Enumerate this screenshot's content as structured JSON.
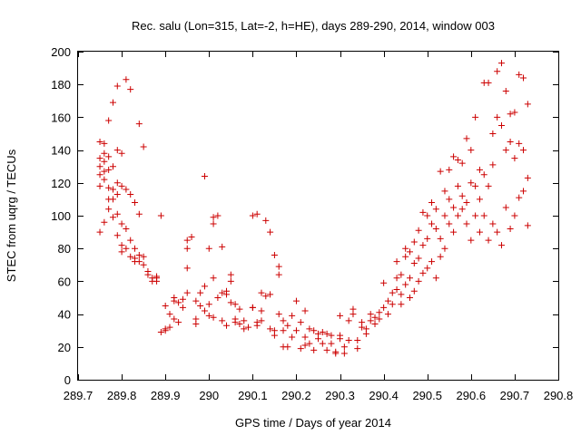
{
  "chart_data": {
    "type": "scatter",
    "title": "Rec. salu (Lon=315, Lat=-2, h=HE), days 289-290, 2014, window 003",
    "xlabel": "GPS time / Days of year 2014",
    "ylabel": "STEC from uqrg / TECUs",
    "xlim": [
      289.7,
      290.8
    ],
    "ylim": [
      0,
      200
    ],
    "xticks": [
      289.7,
      289.8,
      289.9,
      290.0,
      290.1,
      290.2,
      290.3,
      290.4,
      290.5,
      290.6,
      290.7,
      290.8
    ],
    "xtick_labels": [
      "289.7",
      "289.8",
      "289.9",
      "290",
      "290.1",
      "290.2",
      "290.3",
      "290.4",
      "290.5",
      "290.6",
      "290.7",
      "290.8"
    ],
    "yticks": [
      0,
      20,
      40,
      60,
      80,
      100,
      120,
      140,
      160,
      180,
      200
    ],
    "ytick_labels": [
      "0",
      "20",
      "40",
      "60",
      "80",
      "100",
      "120",
      "140",
      "160",
      "180",
      "200"
    ],
    "grid": false,
    "legend": "none",
    "marker": "plus",
    "color": "#cc0000",
    "series": [
      {
        "name": "STEC",
        "points": [
          [
            289.75,
            145
          ],
          [
            289.75,
            135
          ],
          [
            289.75,
            130
          ],
          [
            289.75,
            125
          ],
          [
            289.75,
            118
          ],
          [
            289.75,
            90
          ],
          [
            289.76,
            144
          ],
          [
            289.76,
            138
          ],
          [
            289.76,
            133
          ],
          [
            289.76,
            127
          ],
          [
            289.76,
            122
          ],
          [
            289.76,
            96
          ],
          [
            289.77,
            136
          ],
          [
            289.77,
            128
          ],
          [
            289.77,
            117
          ],
          [
            289.77,
            110
          ],
          [
            289.77,
            104
          ],
          [
            289.77,
            158
          ],
          [
            289.78,
            130
          ],
          [
            289.78,
            116
          ],
          [
            289.78,
            110
          ],
          [
            289.78,
            99
          ],
          [
            289.78,
            169
          ],
          [
            289.79,
            140
          ],
          [
            289.79,
            120
          ],
          [
            289.79,
            113
          ],
          [
            289.79,
            101
          ],
          [
            289.79,
            88
          ],
          [
            289.79,
            179
          ],
          [
            289.8,
            138
          ],
          [
            289.8,
            118
          ],
          [
            289.8,
            95
          ],
          [
            289.8,
            82
          ],
          [
            289.8,
            78
          ],
          [
            289.81,
            183
          ],
          [
            289.81,
            116
          ],
          [
            289.81,
            92
          ],
          [
            289.81,
            80
          ],
          [
            289.82,
            177
          ],
          [
            289.82,
            113
          ],
          [
            289.82,
            85
          ],
          [
            289.82,
            75
          ],
          [
            289.83,
            108
          ],
          [
            289.83,
            80
          ],
          [
            289.83,
            74
          ],
          [
            289.83,
            72
          ],
          [
            289.84,
            156
          ],
          [
            289.84,
            101
          ],
          [
            289.84,
            76
          ],
          [
            289.84,
            72
          ],
          [
            289.85,
            75
          ],
          [
            289.85,
            70
          ],
          [
            289.85,
            142
          ],
          [
            289.86,
            66
          ],
          [
            289.86,
            64
          ],
          [
            289.87,
            60
          ],
          [
            289.87,
            62
          ],
          [
            289.88,
            62
          ],
          [
            289.88,
            63
          ],
          [
            289.88,
            60
          ],
          [
            289.89,
            29
          ],
          [
            289.89,
            100
          ],
          [
            289.9,
            30
          ],
          [
            289.9,
            31
          ],
          [
            289.9,
            45
          ],
          [
            289.91,
            32
          ],
          [
            289.91,
            40
          ],
          [
            289.92,
            37
          ],
          [
            289.92,
            48
          ],
          [
            289.92,
            50
          ],
          [
            289.93,
            35
          ],
          [
            289.93,
            47
          ],
          [
            289.94,
            44
          ],
          [
            289.94,
            49
          ],
          [
            289.95,
            53
          ],
          [
            289.95,
            85
          ],
          [
            289.95,
            80
          ],
          [
            289.95,
            68
          ],
          [
            289.96,
            87
          ],
          [
            289.97,
            48
          ],
          [
            289.97,
            34
          ],
          [
            289.97,
            37
          ],
          [
            289.98,
            53
          ],
          [
            289.98,
            45
          ],
          [
            289.99,
            57
          ],
          [
            289.99,
            124
          ],
          [
            289.99,
            42
          ],
          [
            290.0,
            80
          ],
          [
            290.0,
            46
          ],
          [
            290.0,
            39
          ],
          [
            290.01,
            62
          ],
          [
            290.01,
            95
          ],
          [
            290.01,
            99
          ],
          [
            290.01,
            38
          ],
          [
            290.02,
            100
          ],
          [
            290.02,
            50
          ],
          [
            290.03,
            81
          ],
          [
            290.03,
            53
          ],
          [
            290.03,
            36
          ],
          [
            290.04,
            52
          ],
          [
            290.04,
            54
          ],
          [
            290.04,
            33
          ],
          [
            290.05,
            64
          ],
          [
            290.05,
            60
          ],
          [
            290.05,
            47
          ],
          [
            290.06,
            46
          ],
          [
            290.06,
            35
          ],
          [
            290.06,
            37
          ],
          [
            290.07,
            34
          ],
          [
            290.07,
            43
          ],
          [
            290.08,
            31
          ],
          [
            290.08,
            36
          ],
          [
            290.09,
            32
          ],
          [
            290.1,
            100
          ],
          [
            290.1,
            44
          ],
          [
            290.1,
            44
          ],
          [
            290.11,
            33
          ],
          [
            290.11,
            101
          ],
          [
            290.11,
            35
          ],
          [
            290.12,
            53
          ],
          [
            290.12,
            42
          ],
          [
            290.12,
            36
          ],
          [
            290.13,
            97
          ],
          [
            290.13,
            51
          ],
          [
            290.14,
            90
          ],
          [
            290.14,
            52
          ],
          [
            290.14,
            31
          ],
          [
            290.15,
            76
          ],
          [
            290.15,
            30
          ],
          [
            290.15,
            27
          ],
          [
            290.16,
            69
          ],
          [
            290.16,
            64
          ],
          [
            290.16,
            40
          ],
          [
            290.17,
            20
          ],
          [
            290.17,
            30
          ],
          [
            290.17,
            36
          ],
          [
            290.18,
            20
          ],
          [
            290.18,
            33
          ],
          [
            290.19,
            39
          ],
          [
            290.19,
            26
          ],
          [
            290.2,
            48
          ],
          [
            290.2,
            30
          ],
          [
            290.21,
            19
          ],
          [
            290.21,
            35
          ],
          [
            290.22,
            42
          ],
          [
            290.22,
            26
          ],
          [
            290.22,
            21
          ],
          [
            290.23,
            22
          ],
          [
            290.23,
            31
          ],
          [
            290.24,
            30
          ],
          [
            290.24,
            18
          ],
          [
            290.25,
            25
          ],
          [
            290.25,
            28
          ],
          [
            290.26,
            22
          ],
          [
            290.26,
            29
          ],
          [
            290.27,
            28
          ],
          [
            290.27,
            18
          ],
          [
            290.28,
            22
          ],
          [
            290.28,
            27
          ],
          [
            290.29,
            16
          ],
          [
            290.29,
            17
          ],
          [
            290.3,
            27
          ],
          [
            290.3,
            39
          ],
          [
            290.3,
            25
          ],
          [
            290.31,
            16
          ],
          [
            290.31,
            20
          ],
          [
            290.32,
            36
          ],
          [
            290.32,
            24
          ],
          [
            290.33,
            40
          ],
          [
            290.33,
            43
          ],
          [
            290.34,
            24
          ],
          [
            290.34,
            19
          ],
          [
            290.35,
            32
          ],
          [
            290.35,
            35
          ],
          [
            290.36,
            28
          ],
          [
            290.36,
            31
          ],
          [
            290.37,
            36
          ],
          [
            290.37,
            40
          ],
          [
            290.38,
            38
          ],
          [
            290.38,
            34
          ],
          [
            290.39,
            41
          ],
          [
            290.39,
            37
          ],
          [
            290.4,
            59
          ],
          [
            290.4,
            44
          ],
          [
            290.41,
            48
          ],
          [
            290.41,
            40
          ],
          [
            290.42,
            53
          ],
          [
            290.42,
            46
          ],
          [
            290.43,
            72
          ],
          [
            290.43,
            62
          ],
          [
            290.43,
            55
          ],
          [
            290.44,
            64
          ],
          [
            290.44,
            52
          ],
          [
            290.44,
            46
          ],
          [
            290.45,
            75
          ],
          [
            290.45,
            80
          ],
          [
            290.45,
            58
          ],
          [
            290.46,
            78
          ],
          [
            290.46,
            62
          ],
          [
            290.46,
            50
          ],
          [
            290.47,
            84
          ],
          [
            290.47,
            71
          ],
          [
            290.47,
            54
          ],
          [
            290.48,
            91
          ],
          [
            290.48,
            74
          ],
          [
            290.48,
            60
          ],
          [
            290.49,
            102
          ],
          [
            290.49,
            82
          ],
          [
            290.49,
            65
          ],
          [
            290.5,
            100
          ],
          [
            290.5,
            86
          ],
          [
            290.5,
            68
          ],
          [
            290.51,
            108
          ],
          [
            290.51,
            95
          ],
          [
            290.51,
            72
          ],
          [
            290.52,
            104
          ],
          [
            290.52,
            92
          ],
          [
            290.52,
            62
          ],
          [
            290.53,
            127
          ],
          [
            290.53,
            86
          ],
          [
            290.53,
            75
          ],
          [
            290.54,
            115
          ],
          [
            290.54,
            100
          ],
          [
            290.54,
            80
          ],
          [
            290.55,
            128
          ],
          [
            290.55,
            110
          ],
          [
            290.55,
            95
          ],
          [
            290.56,
            136
          ],
          [
            290.56,
            105
          ],
          [
            290.56,
            90
          ],
          [
            290.57,
            134
          ],
          [
            290.57,
            118
          ],
          [
            290.57,
            100
          ],
          [
            290.58,
            132
          ],
          [
            290.58,
            112
          ],
          [
            290.58,
            104
          ],
          [
            290.59,
            147
          ],
          [
            290.59,
            108
          ],
          [
            290.59,
            95
          ],
          [
            290.6,
            140
          ],
          [
            290.6,
            120
          ],
          [
            290.6,
            85
          ],
          [
            290.61,
            160
          ],
          [
            290.61,
            118
          ],
          [
            290.61,
            100
          ],
          [
            290.62,
            128
          ],
          [
            290.62,
            110
          ],
          [
            290.62,
            90
          ],
          [
            290.63,
            181
          ],
          [
            290.63,
            125
          ],
          [
            290.63,
            100
          ],
          [
            290.64,
            181
          ],
          [
            290.64,
            118
          ],
          [
            290.64,
            85
          ],
          [
            290.65,
            150
          ],
          [
            290.65,
            131
          ],
          [
            290.65,
            95
          ],
          [
            290.66,
            188
          ],
          [
            290.66,
            160
          ],
          [
            290.66,
            90
          ],
          [
            290.67,
            193
          ],
          [
            290.67,
            155
          ],
          [
            290.67,
            82
          ],
          [
            290.68,
            176
          ],
          [
            290.68,
            140
          ],
          [
            290.68,
            105
          ],
          [
            290.69,
            162
          ],
          [
            290.69,
            145
          ],
          [
            290.69,
            92
          ],
          [
            290.7,
            163
          ],
          [
            290.7,
            135
          ],
          [
            290.7,
            100
          ],
          [
            290.71,
            186
          ],
          [
            290.71,
            144
          ],
          [
            290.71,
            111
          ],
          [
            290.72,
            184
          ],
          [
            290.72,
            140
          ],
          [
            290.72,
            115
          ],
          [
            290.73,
            168
          ],
          [
            290.73,
            123
          ],
          [
            290.73,
            94
          ]
        ]
      }
    ]
  }
}
